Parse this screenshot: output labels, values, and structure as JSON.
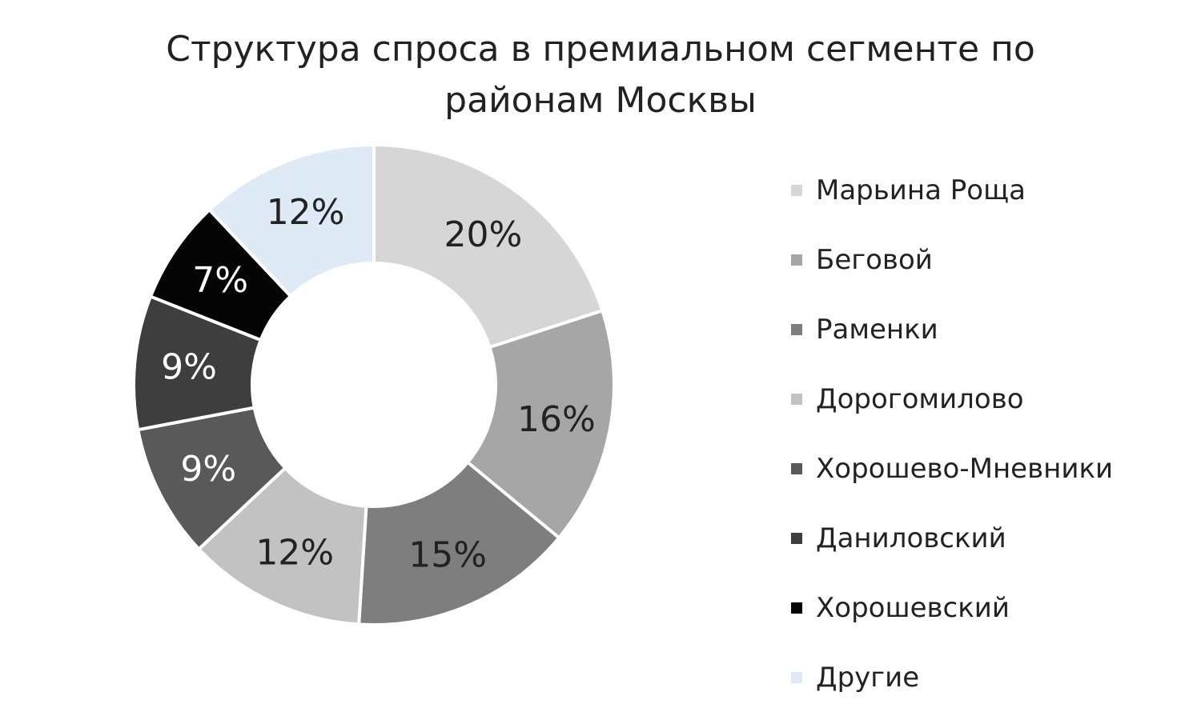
{
  "title": {
    "line1": "Структура спроса в премиальном сегменте по",
    "line2": "районам Москвы"
  },
  "chart_data": {
    "type": "pie",
    "variant": "donut",
    "title": "Структура спроса в премиальном сегменте по районам Москвы",
    "unit": "%",
    "legend_position": "right",
    "slices": [
      {
        "name": "Марьина Роща",
        "value": 20,
        "label": "20%",
        "color": "#d6d6d6",
        "label_color": "#222222"
      },
      {
        "name": "Беговой",
        "value": 16,
        "label": "16%",
        "color": "#a6a6a6",
        "label_color": "#222222"
      },
      {
        "name": "Раменки",
        "value": 15,
        "label": "15%",
        "color": "#7e7e7e",
        "label_color": "#222222"
      },
      {
        "name": "Дорогомилово",
        "value": 12,
        "label": "12%",
        "color": "#c2c2c2",
        "label_color": "#222222"
      },
      {
        "name": "Хорошево-Мневники",
        "value": 9,
        "label": "9%",
        "color": "#595959",
        "label_color": "#ffffff"
      },
      {
        "name": "Даниловский",
        "value": 9,
        "label": "9%",
        "color": "#3e3e3e",
        "label_color": "#ffffff"
      },
      {
        "name": "Хорошевский",
        "value": 7,
        "label": "7%",
        "color": "#050505",
        "label_color": "#ffffff"
      },
      {
        "name": "Другие",
        "value": 12,
        "label": "12%",
        "color": "#deeaf6",
        "label_color": "#222222"
      }
    ]
  }
}
